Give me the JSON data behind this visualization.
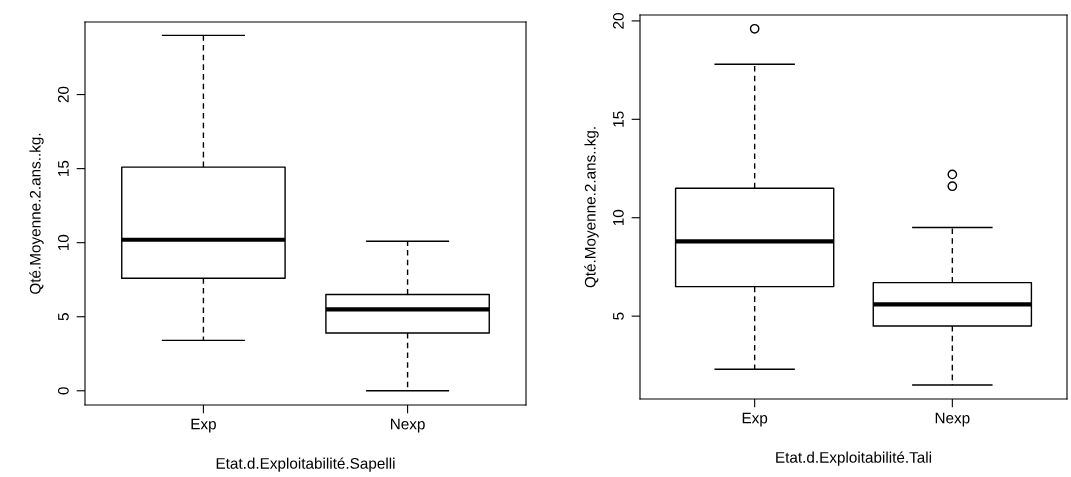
{
  "chart_data": [
    {
      "type": "box",
      "xlabel": "Etat.d.Exploitabilité.Sapelli",
      "ylabel": "Qté.Moyenne.2.ans..kg.",
      "categories": [
        "Exp",
        "Nexp"
      ],
      "boxes": [
        {
          "low": 3.4,
          "q1": 7.6,
          "median": 10.2,
          "q3": 15.1,
          "high": 24.0
        },
        {
          "low": 0.0,
          "q1": 3.9,
          "median": 5.5,
          "q3": 6.5,
          "high": 10.1
        }
      ],
      "ylim": [
        -0.96,
        24.9
      ],
      "yticks": [
        0,
        5,
        10,
        15,
        20
      ],
      "grid": false
    },
    {
      "type": "box",
      "xlabel": "Etat.d.Exploitabilité.Tali",
      "ylabel": "Qté.Moyenne.2.ans..kg.",
      "categories": [
        "Exp",
        "Nexp"
      ],
      "boxes": [
        {
          "low": 2.3,
          "q1": 6.5,
          "median": 8.8,
          "q3": 11.5,
          "high": 17.8,
          "outliers": [
            19.6
          ]
        },
        {
          "low": 1.5,
          "q1": 4.5,
          "median": 5.6,
          "q3": 6.7,
          "high": 9.5,
          "outliers": [
            12.2,
            11.6
          ]
        }
      ],
      "ylim": [
        0.79,
        20.3
      ],
      "yticks": [
        5,
        10,
        15,
        20
      ],
      "grid": false
    }
  ]
}
